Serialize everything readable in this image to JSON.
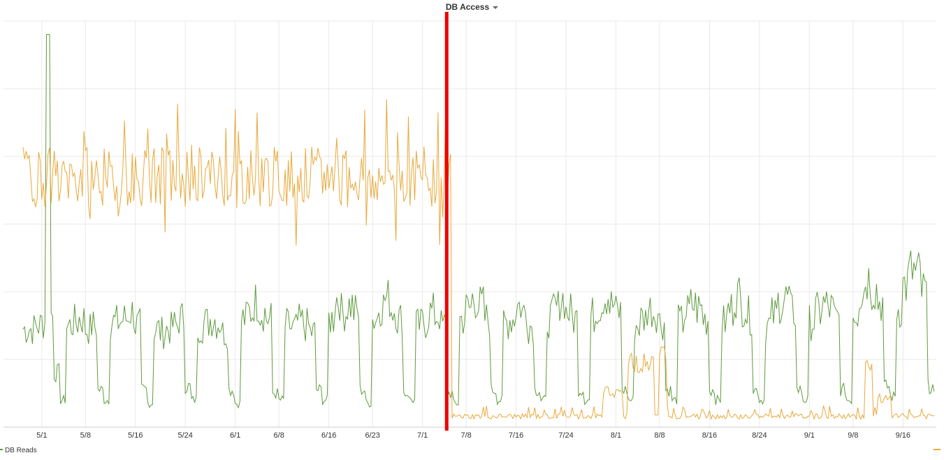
{
  "panel": {
    "title": "DB Access"
  },
  "colors": {
    "db_reads": "#5d9a3c",
    "second": "#e8a838",
    "marker": "#ee0000",
    "grid": "#e9e9e9"
  },
  "chart_data": {
    "type": "line",
    "title": "DB Access",
    "xlabel": "",
    "ylabel": "",
    "x_ticks": [
      "5/1",
      "5/8",
      "5/16",
      "5/24",
      "6/1",
      "6/8",
      "6/16",
      "6/23",
      "7/1",
      "7/8",
      "7/16",
      "7/24",
      "8/1",
      "8/8",
      "8/16",
      "8/24",
      "9/1",
      "9/8",
      "9/16"
    ],
    "x_range": [
      "4/28",
      "9/21"
    ],
    "y_range": [
      0,
      6
    ],
    "grid": true,
    "legend": "bottom",
    "marker_date": "7/6",
    "series": [
      {
        "name": "DB Reads",
        "key": "db_reads",
        "pattern": "weekly",
        "weekday_levels": [
          1.45,
          1.45,
          1.5,
          1.55,
          1.65,
          0.8,
          0.4,
          1.5,
          1.55,
          1.6,
          1.45,
          1.5,
          0.55,
          0.4,
          1.55,
          1.55,
          1.6,
          1.7,
          1.5,
          0.55,
          0.35,
          1.45,
          1.4,
          1.45,
          1.5,
          1.6,
          0.6,
          0.4,
          1.5,
          1.55,
          1.6,
          1.55,
          1.4,
          0.55,
          0.35,
          1.6,
          1.7,
          1.85,
          1.7,
          1.6,
          0.5,
          0.4,
          1.5,
          1.45,
          1.55,
          1.5,
          1.4,
          0.55,
          0.4,
          1.6,
          1.9,
          1.7,
          1.8,
          1.7,
          0.55,
          0.35,
          1.6,
          1.8,
          1.9,
          1.75,
          1.6,
          0.5,
          0.4,
          1.5,
          1.55,
          1.7,
          1.65,
          1.5,
          0.5,
          0.35,
          1.6,
          1.75,
          1.9,
          1.8,
          1.6,
          0.55,
          0.4,
          1.55,
          1.6,
          1.8,
          1.7,
          1.5,
          0.55,
          0.4,
          1.6,
          1.75,
          1.9,
          1.7,
          1.6,
          0.55,
          0.4,
          1.65,
          1.8,
          1.95,
          1.8,
          1.7,
          0.55,
          0.4,
          1.5,
          1.6,
          1.75,
          1.7,
          1.55,
          0.55,
          0.4,
          1.55,
          1.7,
          1.8,
          1.75,
          1.6,
          0.55,
          0.4,
          1.55,
          1.75,
          1.95,
          1.8,
          1.65,
          0.55,
          0.4,
          1.5,
          1.65,
          1.85,
          1.9,
          1.7,
          0.55,
          0.4,
          1.55,
          1.7,
          1.8,
          1.75,
          1.6,
          0.55,
          0.4,
          1.7,
          2.0,
          2.2,
          2.05,
          1.85,
          0.6,
          0.45,
          1.75,
          2.1,
          2.3,
          2.25,
          2.0,
          0.6,
          0.45
        ],
        "spikes": [
          {
            "day": 4,
            "value": 5.8
          }
        ]
      },
      {
        "name": "",
        "key": "second",
        "before_level": 3.7,
        "before_noise": 0.45,
        "after_level": 0.12,
        "after_noise": 0.08,
        "bumps": [
          {
            "from": 93,
            "to": 96,
            "value": 0.55
          },
          {
            "from": 97,
            "to": 101,
            "value": 1.0
          },
          {
            "from": 102,
            "to": 103,
            "value": 1.25
          },
          {
            "from": 135,
            "to": 136,
            "value": 1.0
          },
          {
            "from": 137,
            "to": 139,
            "value": 0.45
          }
        ]
      }
    ]
  }
}
